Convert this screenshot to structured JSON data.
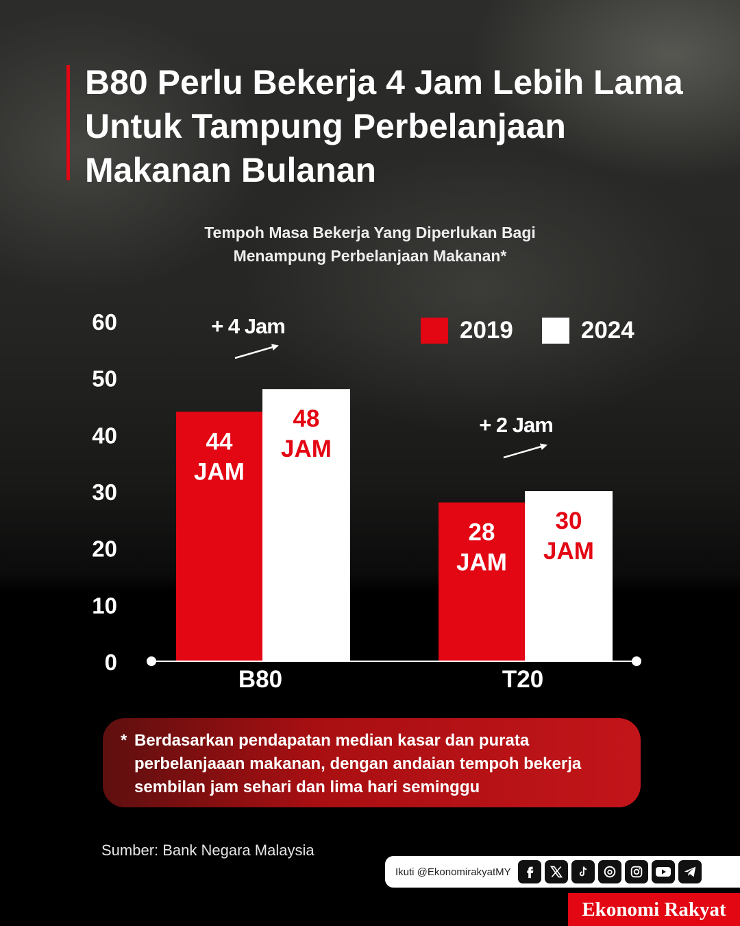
{
  "header": {
    "title": "B80 Perlu Bekerja 4 Jam Lebih Lama Untuk Tampung Perbelanjaan Makanan Bulanan",
    "subtitle_line1": "Tempoh Masa Bekerja Yang Diperlukan Bagi",
    "subtitle_line2": "Menampung Perbelanjaan Makanan*"
  },
  "colors": {
    "accent": "#e30613",
    "series_2019": "#e30613",
    "series_2024": "#ffffff",
    "background": "#000000"
  },
  "chart_data": {
    "type": "bar",
    "title": "Tempoh Masa Bekerja Yang Diperlukan Bagi Menampung Perbelanjaan Makanan*",
    "categories": [
      "B80",
      "T20"
    ],
    "series": [
      {
        "name": "2019",
        "values": [
          44,
          28
        ],
        "labels": [
          "44",
          "28"
        ]
      },
      {
        "name": "2024",
        "values": [
          48,
          30
        ],
        "labels": [
          "48",
          "30"
        ]
      }
    ],
    "unit_label": "JAM",
    "ylim": [
      0,
      60
    ],
    "yticks": [
      "0",
      "10",
      "20",
      "30",
      "40",
      "50",
      "60"
    ],
    "annotations": [
      "+ 4 Jam",
      "+ 2 Jam"
    ],
    "legend_position": "top-right",
    "grid": false
  },
  "footnote": {
    "marker": "*",
    "text": "Berdasarkan pendapatan median kasar dan purata perbelanjaaan makanan, dengan andaian tempoh bekerja sembilan jam sehari dan lima hari seminggu"
  },
  "source": "Sumber: Bank Negara Malaysia",
  "follow": {
    "text": "Ikuti @EkonomirakyatMY",
    "icons": [
      "facebook-icon",
      "x-icon",
      "tiktok-icon",
      "threads-icon",
      "instagram-icon",
      "youtube-icon",
      "telegram-icon"
    ]
  },
  "brand": "Ekonomi Rakyat"
}
